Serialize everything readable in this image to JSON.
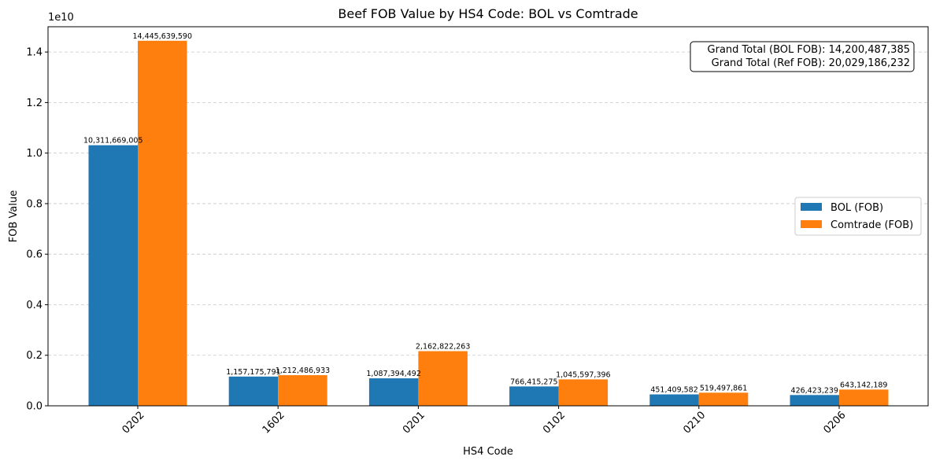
{
  "chart_data": {
    "type": "bar",
    "title": "Beef FOB Value by HS4 Code: BOL vs Comtrade",
    "xlabel": "HS4 Code",
    "ylabel": "FOB Value",
    "y_scale_label": "1e10",
    "categories": [
      "0202",
      "1602",
      "0201",
      "0102",
      "0210",
      "0206"
    ],
    "series": [
      {
        "name": "BOL (FOB)",
        "color": "#1f77b4",
        "values": [
          10311669005,
          1157175791,
          1087394492,
          766415275,
          451409582,
          426423239
        ],
        "labels": [
          "10,311,669,005",
          "1,157,175,791",
          "1,087,394,492",
          "766,415,275",
          "451,409,582",
          "426,423,239"
        ]
      },
      {
        "name": "Comtrade (FOB)",
        "color": "#ff7f0e",
        "values": [
          14445639590,
          1212486933,
          2162822263,
          1045597396,
          519497861,
          643142189
        ],
        "labels": [
          "14,445,639,590",
          "1,212,486,933",
          "2,162,822,263",
          "1,045,597,396",
          "519,497,861",
          "643,142,189"
        ]
      }
    ],
    "ylim": [
      0,
      15000000000
    ],
    "yticks": [
      0,
      0.2,
      0.4,
      0.6,
      0.8,
      1.0,
      1.2,
      1.4
    ],
    "ytick_labels": [
      "0.0",
      "0.2",
      "0.4",
      "0.6",
      "0.8",
      "1.0",
      "1.2",
      "1.4"
    ],
    "grid": "y-dashed",
    "legend_position": "center-right",
    "annotation": {
      "lines": [
        "Grand Total (BOL FOB): 14,200,487,385",
        "Grand Total (Ref FOB): 20,029,186,232"
      ],
      "position": "top-right"
    }
  }
}
